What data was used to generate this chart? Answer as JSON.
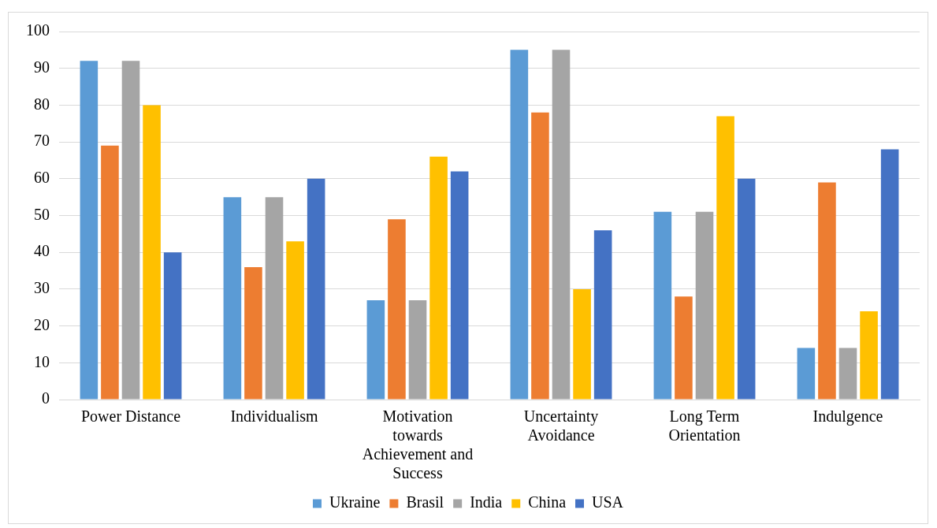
{
  "chart_data": {
    "type": "bar",
    "categories": [
      "Power Distance",
      "Individualism",
      "Motivation towards Achievement and Success",
      "Uncertainty Avoidance",
      "Long Term Orientation",
      "Indulgence"
    ],
    "series": [
      {
        "name": "Ukraine",
        "color": "#5b9bd5",
        "values": [
          92,
          55,
          27,
          95,
          51,
          14
        ]
      },
      {
        "name": "Brasil",
        "color": "#ed7d31",
        "values": [
          69,
          36,
          49,
          78,
          28,
          59
        ]
      },
      {
        "name": "India",
        "color": "#a5a5a5",
        "values": [
          92,
          55,
          27,
          95,
          51,
          14
        ]
      },
      {
        "name": "China",
        "color": "#ffc000",
        "values": [
          80,
          43,
          66,
          30,
          77,
          24
        ]
      },
      {
        "name": "USA",
        "color": "#4472c4",
        "values": [
          40,
          60,
          62,
          46,
          60,
          68
        ]
      }
    ],
    "ylim": [
      0,
      100
    ],
    "yticks": [
      0,
      10,
      20,
      30,
      40,
      50,
      60,
      70,
      80,
      90,
      100
    ],
    "grid": "y",
    "legend": "bottom"
  }
}
